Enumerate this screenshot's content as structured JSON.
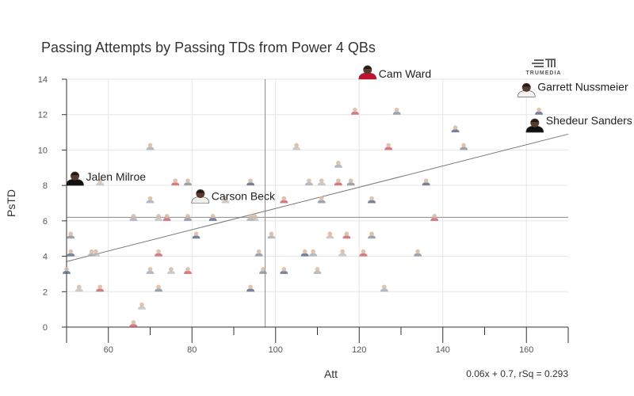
{
  "chart_data": {
    "type": "scatter",
    "title": "Passing Attempts by Passing TDs from Power 4 QBs",
    "xlabel": "Att",
    "ylabel": "PsTD",
    "xlim": [
      50,
      170
    ],
    "ylim": [
      0,
      14
    ],
    "x_ticks": [
      60,
      80,
      100,
      120,
      140,
      160
    ],
    "y_ticks": [
      0,
      2,
      4,
      6,
      8,
      10,
      12,
      14
    ],
    "grid": true,
    "mean_x": 97.5,
    "mean_y": 6.2,
    "trendline": {
      "slope": 0.06,
      "intercept": 0.7,
      "rsq": 0.293
    },
    "equation_label": "0.06x + 0.7, rSq = 0.293",
    "points": [
      {
        "x": 122,
        "y": 14,
        "label": "Cam Ward",
        "highlight": true
      },
      {
        "x": 160,
        "y": 13,
        "label": "Garrett Nussmeier",
        "highlight": true
      },
      {
        "x": 162,
        "y": 11,
        "label": "Shedeur Sanders",
        "highlight": true
      },
      {
        "x": 52,
        "y": 8,
        "label": "Jalen Milroe",
        "highlight": true
      },
      {
        "x": 82,
        "y": 7,
        "label": "Carson Beck",
        "highlight": true
      },
      {
        "x": 119,
        "y": 12
      },
      {
        "x": 129,
        "y": 12
      },
      {
        "x": 163,
        "y": 12
      },
      {
        "x": 70,
        "y": 10
      },
      {
        "x": 105,
        "y": 10
      },
      {
        "x": 127,
        "y": 10
      },
      {
        "x": 145,
        "y": 10
      },
      {
        "x": 143,
        "y": 11
      },
      {
        "x": 115,
        "y": 9
      },
      {
        "x": 58,
        "y": 8
      },
      {
        "x": 76,
        "y": 8
      },
      {
        "x": 79,
        "y": 8
      },
      {
        "x": 94,
        "y": 8
      },
      {
        "x": 108,
        "y": 8
      },
      {
        "x": 111,
        "y": 8
      },
      {
        "x": 115,
        "y": 8
      },
      {
        "x": 118,
        "y": 8
      },
      {
        "x": 136,
        "y": 8
      },
      {
        "x": 70,
        "y": 7
      },
      {
        "x": 88,
        "y": 7
      },
      {
        "x": 102,
        "y": 7
      },
      {
        "x": 111,
        "y": 7
      },
      {
        "x": 123,
        "y": 7
      },
      {
        "x": 66,
        "y": 6
      },
      {
        "x": 72,
        "y": 6
      },
      {
        "x": 74,
        "y": 6
      },
      {
        "x": 79,
        "y": 6
      },
      {
        "x": 85,
        "y": 6
      },
      {
        "x": 94,
        "y": 6
      },
      {
        "x": 95,
        "y": 6
      },
      {
        "x": 138,
        "y": 6
      },
      {
        "x": 51,
        "y": 5
      },
      {
        "x": 81,
        "y": 5
      },
      {
        "x": 99,
        "y": 5
      },
      {
        "x": 113,
        "y": 5
      },
      {
        "x": 117,
        "y": 5
      },
      {
        "x": 123,
        "y": 5
      },
      {
        "x": 51,
        "y": 4
      },
      {
        "x": 56,
        "y": 4
      },
      {
        "x": 57,
        "y": 4
      },
      {
        "x": 72,
        "y": 4
      },
      {
        "x": 96,
        "y": 4
      },
      {
        "x": 107,
        "y": 4
      },
      {
        "x": 109,
        "y": 4
      },
      {
        "x": 116,
        "y": 4
      },
      {
        "x": 121,
        "y": 4
      },
      {
        "x": 134,
        "y": 4
      },
      {
        "x": 50,
        "y": 3
      },
      {
        "x": 70,
        "y": 3
      },
      {
        "x": 75,
        "y": 3
      },
      {
        "x": 79,
        "y": 3
      },
      {
        "x": 97,
        "y": 3
      },
      {
        "x": 102,
        "y": 3
      },
      {
        "x": 110,
        "y": 3
      },
      {
        "x": 53,
        "y": 2
      },
      {
        "x": 58,
        "y": 2
      },
      {
        "x": 72,
        "y": 2
      },
      {
        "x": 94,
        "y": 2
      },
      {
        "x": 126,
        "y": 2
      },
      {
        "x": 68,
        "y": 1
      },
      {
        "x": 66,
        "y": 0
      }
    ]
  },
  "logo_text": "TRUMEDIA",
  "colors": {
    "axis": "#333333",
    "grid": "#e6e6e6",
    "reference": "#8a8a8a",
    "trendline": "#777777",
    "dot_skin": "#d8b9a0",
    "dot_shirt": [
      "#c6505a",
      "#7a8796",
      "#4a5a7a",
      "#9aa6b2",
      "#b9b9b9"
    ],
    "highlight_shirt": [
      "#c8102e",
      "#f3f3f3",
      "#111111",
      "#111111",
      "#f0f0f0"
    ]
  }
}
